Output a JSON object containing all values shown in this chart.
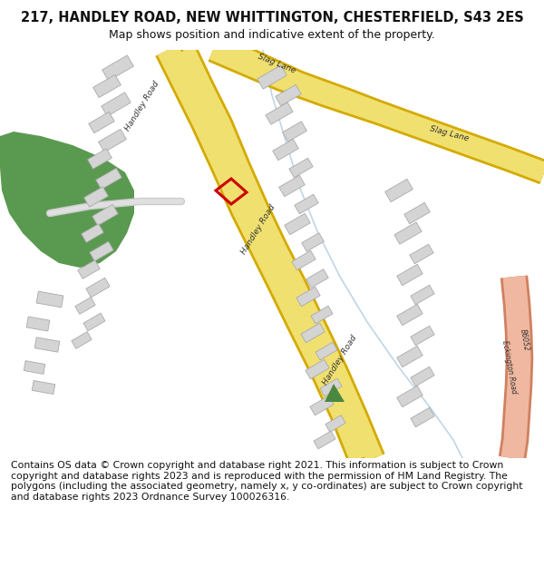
{
  "title_line1": "217, HANDLEY ROAD, NEW WHITTINGTON, CHESTERFIELD, S43 2ES",
  "title_line2": "Map shows position and indicative extent of the property.",
  "footer_text": "Contains OS data © Crown copyright and database right 2021. This information is subject to Crown copyright and database rights 2023 and is reproduced with the permission of HM Land Registry. The polygons (including the associated geometry, namely x, y co-ordinates) are subject to Crown copyright and database rights 2023 Ordnance Survey 100026316.",
  "bg_color": "#ffffff",
  "road_yellow_fill": "#f0e070",
  "road_yellow_border": "#d4aa00",
  "road_pink_fill": "#f0b8a0",
  "road_pink_border": "#d08060",
  "building_color": "#d4d4d4",
  "building_edge": "#aaaaaa",
  "green_color": "#5a9a50",
  "green_triangle_color": "#4a8840",
  "stream_color": "#b0cce0",
  "highlight_color": "#cc0000",
  "label_color": "#333333",
  "title_fontsize": 10.5,
  "subtitle_fontsize": 9,
  "footer_fontsize": 7.8,
  "map_border_color": "#999999"
}
